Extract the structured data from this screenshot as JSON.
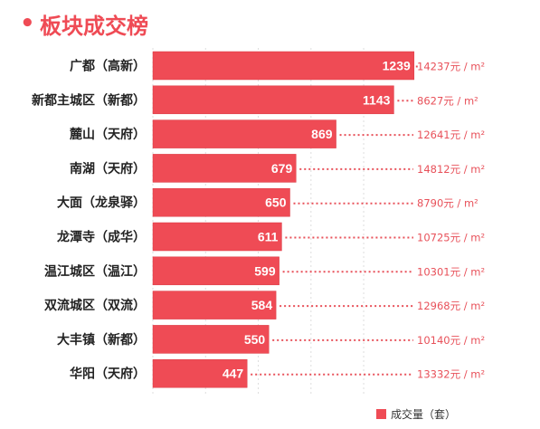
{
  "title_bullet": "•",
  "title": "板块成交榜",
  "legend": {
    "label": "成交量（套）"
  },
  "colors": {
    "bar": "#ef4b55",
    "bar_edge": "#d93a44",
    "accent": "#ef4b55",
    "price": "#e8515a",
    "dots": "#e8515a",
    "text": "#222222",
    "grid": "#dddddd"
  },
  "chart_data": {
    "type": "bar",
    "orientation": "horizontal",
    "categories": [
      "广都（高新）",
      "新都主城区（新都）",
      "麓山（天府）",
      "南湖（天府）",
      "大面（龙泉驿）",
      "龙潭寺（成华）",
      "温江城区（温江）",
      "双流城区（双流）",
      "大丰镇（新都）",
      "华阳（天府）"
    ],
    "values": [
      1239,
      1143,
      869,
      679,
      650,
      611,
      599,
      584,
      550,
      447
    ],
    "value_labels": [
      "1239",
      "1143",
      "869",
      "679",
      "650",
      "611",
      "599",
      "584",
      "550",
      "447"
    ],
    "price_labels": [
      "14237元 / m²",
      "8627元 / m²",
      "12641元 / m²",
      "14812元 / m²",
      "8790元 / m²",
      "10725元 / m²",
      "10301元 / m²",
      "12968元 / m²",
      "10140元 / m²",
      "13332元 / m²"
    ],
    "xlim": [
      0,
      1300
    ],
    "grid": true,
    "legend_position": "bottom-right"
  }
}
